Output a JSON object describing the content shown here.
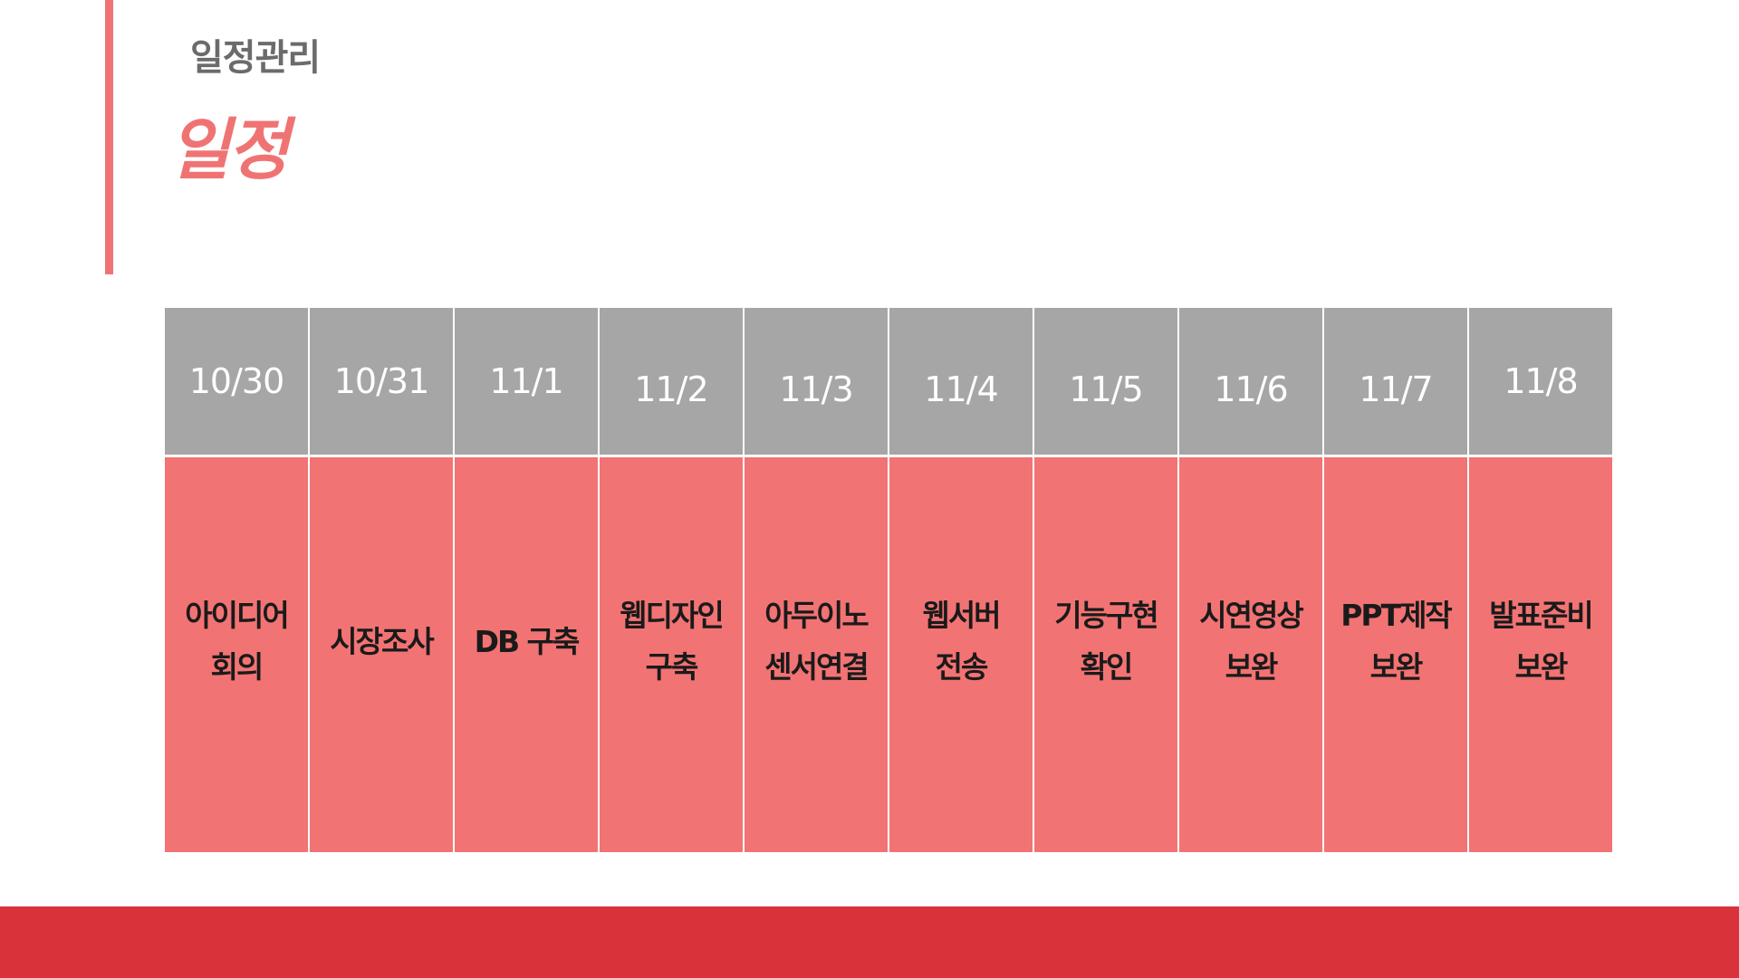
{
  "header": {
    "section_label": "일정관리",
    "title": "일정"
  },
  "colors": {
    "accent": "#f07373",
    "header_cell": "#a6a6a6",
    "task_cell": "#f27373",
    "footer": "#d9323a"
  },
  "schedule": {
    "columns": [
      {
        "date": "10/30",
        "task": "아이디어\n회의"
      },
      {
        "date": "10/31",
        "task": "시장조사"
      },
      {
        "date": "11/1",
        "task": "DB 구축"
      },
      {
        "date": "11/2",
        "task": "웹디자인\n구축"
      },
      {
        "date": "11/3",
        "task": "아두이노\n센서연결"
      },
      {
        "date": "11/4",
        "task": "웹서버\n전송"
      },
      {
        "date": "11/5",
        "task": "기능구현\n확인"
      },
      {
        "date": "11/6",
        "task": "시연영상\n보완"
      },
      {
        "date": "11/7",
        "task": "PPT제작\n보완"
      },
      {
        "date": "11/8",
        "task": "발표준비\n보완"
      }
    ]
  }
}
